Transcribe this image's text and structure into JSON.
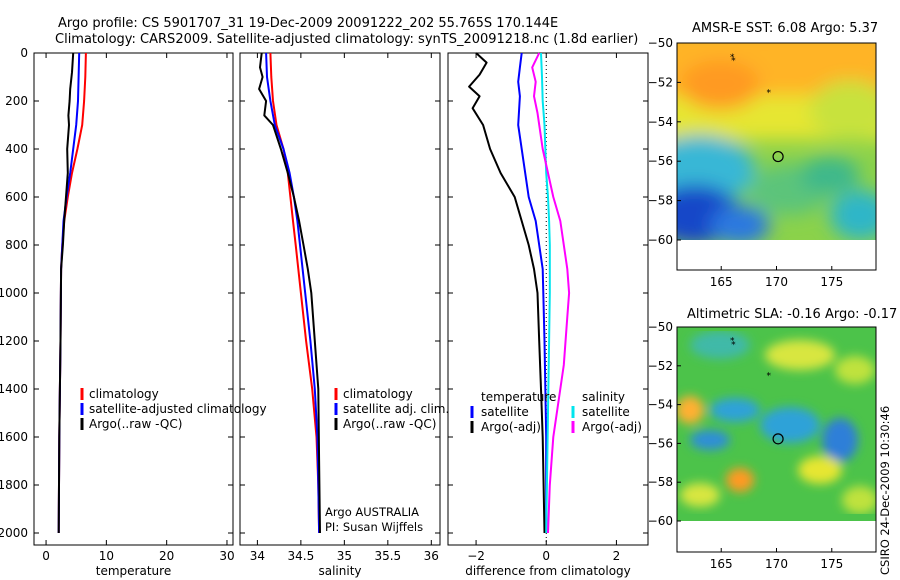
{
  "header": {
    "line1": "Argo profile: CS 5901707_31 19-Dec-2009 20091222_202 55.765S 170.144E",
    "line2": "Climatology: CARS2009. Satellite-adjusted climatology: synTS_20091218.nc (1.8d earlier)"
  },
  "footer": {
    "credit": "CSIRO 24-Dec-2009 10:30:46",
    "argo_label": "Argo AUSTRALIA",
    "pi_label": "PI: Susan Wijffels"
  },
  "colors": {
    "climatology": "#ff0000",
    "satellite": "#0000ff",
    "argo": "#000000",
    "sal_satellite": "#00e5ee",
    "sal_argo": "#ff00ff"
  },
  "chart_data": [
    {
      "type": "line",
      "id": "temperature",
      "xlabel": "temperature",
      "ylabel": "",
      "xlim": [
        -2,
        31
      ],
      "ylim": [
        2050,
        0
      ],
      "xticks": [
        0,
        10,
        20,
        30
      ],
      "yticks": [
        0,
        200,
        400,
        600,
        800,
        1000,
        1200,
        1400,
        1600,
        1800,
        2000
      ],
      "legend": {
        "placement": "lower-center",
        "entries": [
          "climatology",
          "satellite-adjusted climatology",
          "Argo(..raw -QC)"
        ]
      },
      "series": [
        {
          "name": "climatology",
          "color": "#ff0000",
          "x": [
            6.6,
            6.5,
            6.3,
            6.0,
            5.2,
            4.3,
            3.6,
            3.0,
            2.7,
            2.5,
            2.4,
            2.2,
            2.1
          ],
          "y": [
            0,
            100,
            200,
            300,
            400,
            500,
            600,
            700,
            800,
            900,
            1200,
            1600,
            2000
          ]
        },
        {
          "name": "satellite-adjusted climatology",
          "color": "#0000ff",
          "x": [
            5.5,
            5.4,
            5.3,
            5.0,
            4.5,
            4.0,
            3.4,
            2.9,
            2.7,
            2.5,
            2.4,
            2.2,
            2.1
          ],
          "y": [
            0,
            100,
            200,
            300,
            400,
            500,
            600,
            700,
            800,
            900,
            1200,
            1600,
            2000
          ]
        },
        {
          "name": "Argo(..raw -QC)",
          "color": "#000000",
          "x": [
            4.5,
            4.3,
            4.0,
            3.9,
            3.7,
            3.8,
            3.5,
            3.6,
            3.3,
            3.0,
            2.8,
            2.5,
            2.4,
            2.2,
            2.1
          ],
          "y": [
            0,
            80,
            150,
            200,
            260,
            300,
            400,
            500,
            600,
            700,
            800,
            900,
            1200,
            1600,
            2000
          ]
        }
      ]
    },
    {
      "type": "line",
      "id": "salinity",
      "xlabel": "salinity",
      "ylabel": "",
      "xlim": [
        33.8,
        36.1
      ],
      "ylim": [
        2050,
        0
      ],
      "xticks": [
        34,
        34.5,
        35,
        35.5,
        36
      ],
      "yticks": [],
      "legend": {
        "placement": "lower-center",
        "entries": [
          "climatology",
          "satellite adj. clim.",
          "Argo(..raw -QC)"
        ]
      },
      "series": [
        {
          "name": "climatology",
          "color": "#ff0000",
          "x": [
            34.15,
            34.16,
            34.18,
            34.22,
            34.3,
            34.35,
            34.38,
            34.41,
            34.44,
            34.47,
            34.5,
            34.56,
            34.63,
            34.68,
            34.7,
            34.71
          ],
          "y": [
            0,
            100,
            200,
            300,
            400,
            500,
            600,
            700,
            800,
            900,
            1000,
            1200,
            1400,
            1600,
            1800,
            2000
          ]
        },
        {
          "name": "satellite adj. clim.",
          "color": "#0000ff",
          "x": [
            34.1,
            34.11,
            34.15,
            34.2,
            34.3,
            34.37,
            34.42,
            34.46,
            34.49,
            34.52,
            34.55,
            34.61,
            34.66,
            34.69,
            34.7,
            34.71
          ],
          "y": [
            0,
            100,
            200,
            300,
            400,
            500,
            600,
            700,
            800,
            900,
            1000,
            1200,
            1400,
            1600,
            1800,
            2000
          ]
        },
        {
          "name": "Argo(..raw -QC)",
          "color": "#000000",
          "x": [
            34.05,
            34.03,
            34.06,
            34.02,
            34.1,
            34.08,
            34.18,
            34.27,
            34.35,
            34.42,
            34.48,
            34.53,
            34.58,
            34.62,
            34.66,
            34.7,
            34.71,
            34.72
          ],
          "y": [
            0,
            60,
            100,
            150,
            200,
            260,
            300,
            400,
            500,
            600,
            700,
            800,
            900,
            1000,
            1200,
            1400,
            1700,
            2000
          ]
        }
      ]
    },
    {
      "type": "line",
      "id": "difference",
      "xlabel": "difference from climatology",
      "ylabel": "",
      "xlim": [
        -2.8,
        2.9
      ],
      "ylim": [
        2050,
        0
      ],
      "xticks": [
        -2,
        0,
        2
      ],
      "yticks": [],
      "legend": {
        "placement": "lower-center",
        "groups": [
          {
            "title": "temperature",
            "entries": [
              "satellite",
              "Argo(-adj)"
            ]
          },
          {
            "title": "salinity",
            "entries": [
              "satellite",
              "Argo(-adj)"
            ]
          }
        ]
      },
      "series": [
        {
          "name": "satellite",
          "group": "temperature",
          "color": "#0000ff",
          "x": [
            -0.7,
            -0.75,
            -0.8,
            -0.75,
            -0.8,
            -0.6,
            -0.5,
            -0.3,
            -0.2,
            -0.1,
            -0.05,
            0,
            0
          ],
          "y": [
            0,
            60,
            120,
            180,
            300,
            500,
            600,
            700,
            800,
            900,
            1200,
            1600,
            2000
          ]
        },
        {
          "name": "Argo(-adj)",
          "group": "temperature",
          "color": "#000000",
          "x": [
            -2.0,
            -1.7,
            -1.9,
            -2.2,
            -1.9,
            -2.1,
            -1.8,
            -1.6,
            -1.3,
            -0.9,
            -0.7,
            -0.5,
            -0.35,
            -0.25,
            -0.2,
            -0.15,
            -0.1,
            -0.05
          ],
          "y": [
            0,
            40,
            90,
            140,
            180,
            230,
            300,
            400,
            500,
            600,
            700,
            800,
            900,
            1000,
            1200,
            1400,
            1600,
            2000
          ]
        },
        {
          "name": "satellite",
          "group": "salinity",
          "color": "#00e5ee",
          "x": [
            -0.15,
            -0.12,
            -0.1,
            -0.05,
            0,
            0.05,
            0.08,
            0.1,
            0.1,
            0.08,
            0.05,
            0.02,
            0
          ],
          "y": [
            0,
            100,
            200,
            300,
            500,
            600,
            700,
            800,
            1000,
            1200,
            1500,
            1800,
            2000
          ]
        },
        {
          "name": "Argo(-adj)",
          "group": "salinity",
          "color": "#ff00ff",
          "x": [
            -0.2,
            -0.4,
            -0.3,
            -0.35,
            -0.25,
            -0.1,
            0.2,
            0.4,
            0.5,
            0.6,
            0.65,
            0.6,
            0.5,
            0.4,
            0.2,
            0.1,
            0.05
          ],
          "y": [
            0,
            60,
            120,
            180,
            250,
            400,
            600,
            700,
            800,
            900,
            1000,
            1100,
            1300,
            1400,
            1600,
            1800,
            2000
          ]
        }
      ]
    },
    {
      "type": "heatmap",
      "id": "sst_map",
      "title": "AMSR-E SST: 6.08 Argo: 5.37",
      "xlim": [
        161,
        179
      ],
      "ylim": [
        -60,
        -50
      ],
      "xticks": [
        165,
        170,
        175
      ],
      "yticks": [
        -50,
        -52,
        -54,
        -56,
        -58,
        -60
      ],
      "profile_marker": {
        "lon": 170.144,
        "lat": -55.765
      },
      "track_markers": [
        {
          "lon": 166.0,
          "lat": -50.7
        },
        {
          "lon": 166.1,
          "lat": -50.9
        },
        {
          "lon": 169.3,
          "lat": -52.5
        }
      ]
    },
    {
      "type": "heatmap",
      "id": "sla_map",
      "title": "Altimetric SLA: -0.16 Argo: -0.17",
      "xlim": [
        161,
        179
      ],
      "ylim": [
        -60,
        -50
      ],
      "xticks": [
        165,
        170,
        175
      ],
      "yticks": [
        -50,
        -52,
        -54,
        -56,
        -58,
        -60
      ],
      "profile_marker": {
        "lon": 170.144,
        "lat": -55.765
      },
      "track_markers": [
        {
          "lon": 166.0,
          "lat": -50.7
        },
        {
          "lon": 166.1,
          "lat": -50.9
        },
        {
          "lon": 169.3,
          "lat": -52.5
        }
      ]
    }
  ]
}
